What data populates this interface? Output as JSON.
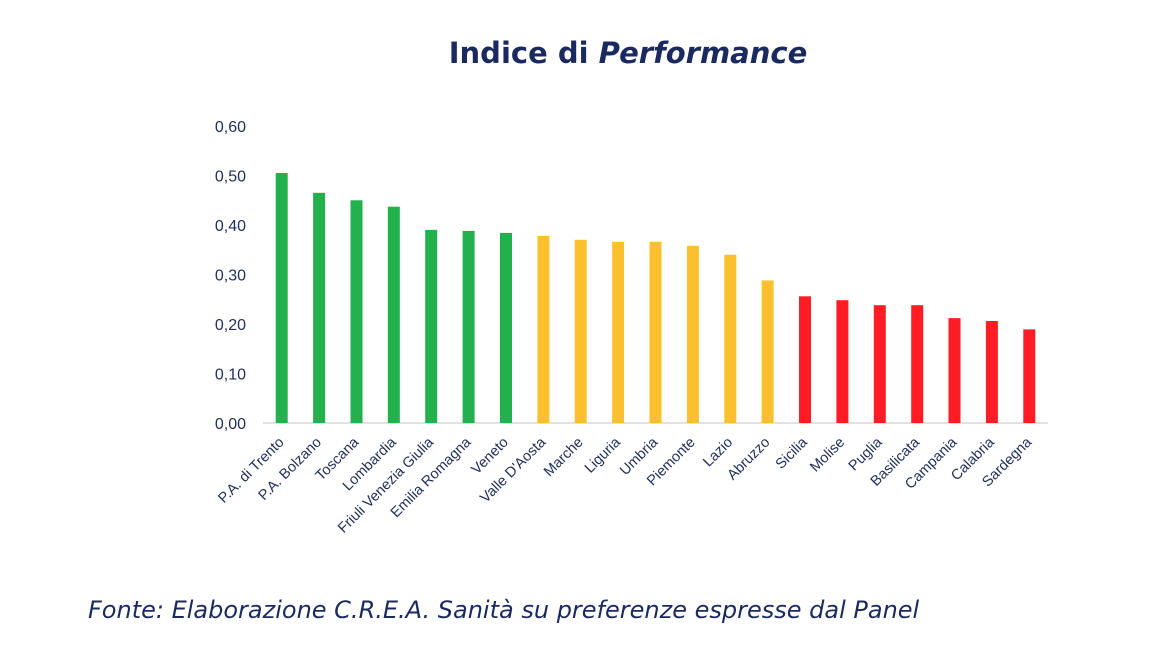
{
  "title": {
    "text": "Indice di",
    "emphasis": "Performance"
  },
  "source_note": "Fonte: Elaborazione C.R.E.A. Sanità su preferenze espresse dal Panel",
  "colors": {
    "green": "#22b14c",
    "yellow": "#fbc02d",
    "red": "#ff1d25",
    "title": "#1a2a5e",
    "axis_text": "#1f2d5a"
  },
  "chart_data": {
    "type": "bar",
    "title": "Indice di Performance",
    "xlabel": "",
    "ylabel": "",
    "ylim": [
      0,
      0.6
    ],
    "yticks": [
      "0,00",
      "0,10",
      "0,20",
      "0,30",
      "0,40",
      "0,50",
      "0,60"
    ],
    "grid": false,
    "legend": "none",
    "categories": [
      "P.A. di Trento",
      "P.A. Bolzano",
      "Toscana",
      "Lombardia",
      "Friuli Venezia Giulia",
      "Emilia Romagna",
      "Veneto",
      "Valle D'Aosta",
      "Marche",
      "Liguria",
      "Umbria",
      "Piemonte",
      "Lazio",
      "Abruzzo",
      "Sicilia",
      "Molise",
      "Puglia",
      "Basilicata",
      "Campania",
      "Calabria",
      "Sardegna"
    ],
    "values": [
      0.505,
      0.465,
      0.45,
      0.437,
      0.39,
      0.388,
      0.384,
      0.378,
      0.37,
      0.366,
      0.366,
      0.358,
      0.34,
      0.288,
      0.256,
      0.248,
      0.238,
      0.238,
      0.212,
      0.206,
      0.189
    ],
    "bar_color_group": [
      "green",
      "green",
      "green",
      "green",
      "green",
      "green",
      "green",
      "yellow",
      "yellow",
      "yellow",
      "yellow",
      "yellow",
      "yellow",
      "yellow",
      "red",
      "red",
      "red",
      "red",
      "red",
      "red",
      "red"
    ]
  }
}
